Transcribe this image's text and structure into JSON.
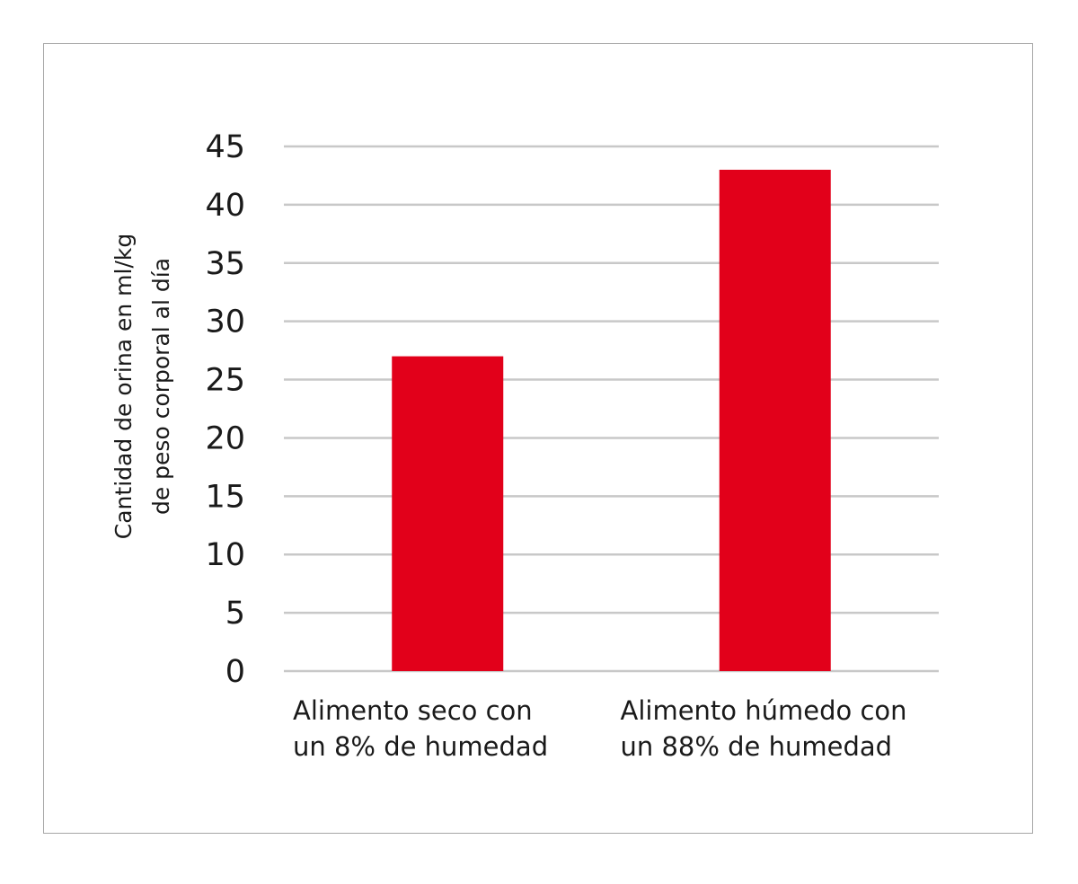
{
  "chart_data": {
    "type": "bar",
    "title": "",
    "xlabel": "",
    "ylabel_lines": [
      "Cantidad de orina en ml/kg",
      "de peso corporal al día"
    ],
    "categories": [
      [
        "Alimento seco con",
        "un 8% de humedad"
      ],
      [
        "Alimento húmedo con",
        "un 88% de humedad"
      ]
    ],
    "values": [
      27,
      43
    ],
    "ylim": [
      0,
      45
    ],
    "yticks": [
      "0",
      "5",
      "10",
      "15",
      "20",
      "25",
      "30",
      "35",
      "40",
      "45"
    ],
    "grid": true,
    "legend": "none",
    "colors": {
      "bar": "#e2001a",
      "grid": "#c8c8c8",
      "frame": "#a6a6a6",
      "text": "#1a1a1a"
    }
  }
}
